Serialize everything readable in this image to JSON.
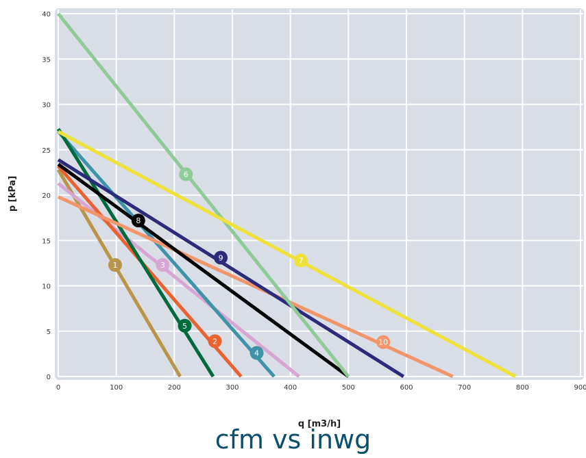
{
  "chart_data": {
    "type": "line",
    "xlabel": "q [m3/h]",
    "ylabel": "p [kPa]",
    "xlim": [
      0,
      900
    ],
    "ylim": [
      0,
      40
    ],
    "x_ticks": [
      0,
      100,
      200,
      300,
      400,
      500,
      600,
      700,
      800,
      900
    ],
    "y_ticks": [
      0,
      5,
      10,
      15,
      20,
      25,
      30,
      35,
      40
    ],
    "grid": true,
    "background": "#d9dde6",
    "series": [
      {
        "name": "1",
        "color": "#b8954a",
        "x": [
          0,
          210
        ],
        "y": [
          22.8,
          0
        ],
        "label_at": [
          98,
          12.3
        ]
      },
      {
        "name": "2",
        "color": "#e8632f",
        "x": [
          0,
          315
        ],
        "y": [
          23.2,
          0
        ],
        "label_at": [
          270,
          3.9
        ]
      },
      {
        "name": "3",
        "color": "#d7a6d2",
        "x": [
          0,
          415
        ],
        "y": [
          21.3,
          0
        ],
        "label_at": [
          180,
          12.3
        ]
      },
      {
        "name": "4",
        "color": "#3f93a8",
        "x": [
          0,
          372
        ],
        "y": [
          27.0,
          0
        ],
        "label_at": [
          342,
          2.6
        ]
      },
      {
        "name": "5",
        "color": "#006a3c",
        "x": [
          0,
          267
        ],
        "y": [
          27.3,
          0
        ],
        "label_at": [
          218,
          5.6
        ]
      },
      {
        "name": "6",
        "color": "#8ecb98",
        "x": [
          0,
          500
        ],
        "y": [
          40.0,
          0
        ],
        "label_at": [
          220,
          22.3
        ]
      },
      {
        "name": "7",
        "color": "#ede13a",
        "x": [
          0,
          788
        ],
        "y": [
          27.0,
          0
        ],
        "label_at": [
          418,
          12.8
        ]
      },
      {
        "name": "8",
        "color": "#000000",
        "x": [
          0,
          500
        ],
        "y": [
          23.4,
          0
        ],
        "label_at": [
          138,
          17.2
        ]
      },
      {
        "name": "9",
        "color": "#2c2b7a",
        "x": [
          0,
          595
        ],
        "y": [
          23.9,
          0
        ],
        "label_at": [
          280,
          13.1
        ]
      },
      {
        "name": "10",
        "color": "#f2956a",
        "x": [
          0,
          680
        ],
        "y": [
          19.8,
          0
        ],
        "label_at": [
          560,
          3.8
        ]
      }
    ]
  },
  "footer": {
    "title": "cfm vs inwg"
  }
}
